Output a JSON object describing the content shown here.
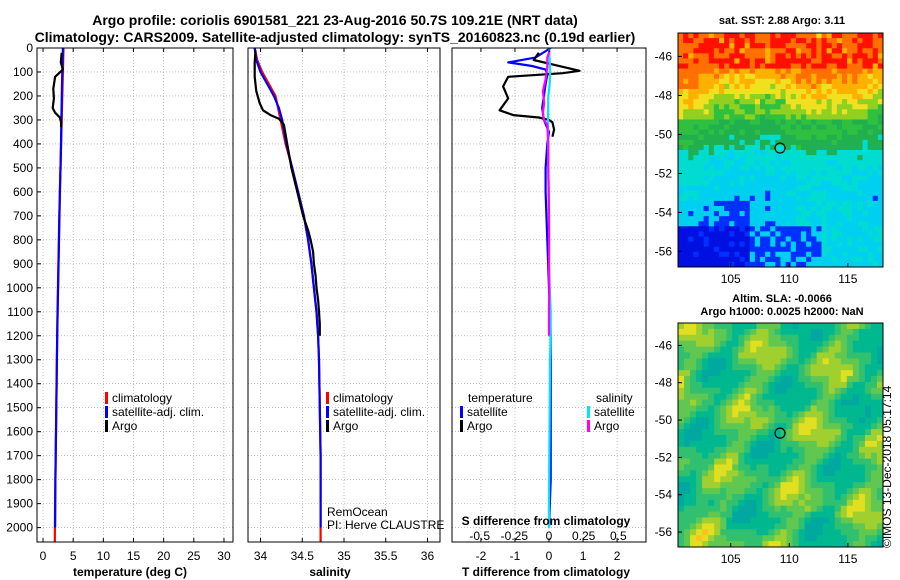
{
  "figure": {
    "title_line1": "Argo profile: coriolis 6901581_221 23-Aug-2016 50.7S 109.21E (NRT data)",
    "title_line2": "Climatology: CARS2009. Satellite-adjusted climatology: synTS_20160823.nc (0.19d earlier)",
    "credit": "RemOcean",
    "pi": "PI: Herve CLAUSTRE",
    "footer": "©IMOS 13-Dec-2018 05:17:14"
  },
  "colors": {
    "climatology": "#ff0000",
    "satellite": "#0000ff",
    "argo": "#000000",
    "satellite_salinity": "#00e5ff",
    "argo_salinity": "#ff00ff"
  },
  "chart_data": [
    {
      "id": "temperature",
      "type": "line",
      "xlabel": "temperature (deg C)",
      "ylabel": "",
      "xlim": [
        -1,
        31.5
      ],
      "ylim": [
        2060,
        0
      ],
      "xticks": [
        0,
        5,
        10,
        15,
        20,
        25,
        30
      ],
      "xticklabels": [
        "0",
        "5",
        "10",
        "15",
        "20",
        "25",
        "30"
      ],
      "yticks": [
        0,
        100,
        200,
        300,
        400,
        500,
        600,
        700,
        800,
        900,
        1000,
        1100,
        1200,
        1300,
        1400,
        1500,
        1600,
        1700,
        1800,
        1900,
        2000
      ],
      "legend": [
        "climatology",
        "satellite-adj. clim.",
        "Argo"
      ],
      "series": [
        {
          "name": "climatology",
          "color": "#ff0000",
          "points": [
            [
              3.4,
              0
            ],
            [
              3.3,
              100
            ],
            [
              3.2,
              200
            ],
            [
              3.1,
              300
            ],
            [
              3.0,
              400
            ],
            [
              2.9,
              500
            ],
            [
              2.7,
              700
            ],
            [
              2.55,
              900
            ],
            [
              2.4,
              1100
            ],
            [
              2.3,
              1300
            ],
            [
              2.2,
              1500
            ],
            [
              2.1,
              1700
            ],
            [
              2.0,
              1900
            ],
            [
              1.95,
              2060
            ]
          ]
        },
        {
          "name": "satellite-adj. clim.",
          "color": "#0000ff",
          "points": [
            [
              3.3,
              0
            ],
            [
              3.25,
              50
            ],
            [
              3.15,
              150
            ],
            [
              3.05,
              300
            ],
            [
              2.95,
              450
            ],
            [
              2.8,
              600
            ],
            [
              2.65,
              800
            ],
            [
              2.5,
              1000
            ],
            [
              2.35,
              1200
            ],
            [
              2.25,
              1400
            ],
            [
              2.15,
              1600
            ],
            [
              2.05,
              1800
            ],
            [
              2.0,
              2000
            ]
          ]
        },
        {
          "name": "Argo",
          "color": "#000000",
          "points": [
            [
              3.1,
              20
            ],
            [
              2.95,
              60
            ],
            [
              3.3,
              90
            ],
            [
              2.0,
              120
            ],
            [
              1.7,
              170
            ],
            [
              1.8,
              210
            ],
            [
              1.6,
              250
            ],
            [
              2.0,
              270
            ],
            [
              2.8,
              290
            ],
            [
              3.0,
              310
            ],
            [
              3.0,
              330
            ]
          ]
        }
      ]
    },
    {
      "id": "salinity",
      "type": "line",
      "xlabel": "salinity",
      "ylabel": "",
      "xlim": [
        33.85,
        36.15
      ],
      "ylim": [
        2060,
        0
      ],
      "xticks": [
        34,
        34.5,
        35,
        35.5,
        36
      ],
      "xticklabels": [
        "34",
        "34.5",
        "35",
        "35.5",
        "36"
      ],
      "legend": [
        "climatology",
        "satellite-adj. clim.",
        "Argo"
      ],
      "series": [
        {
          "name": "climatology",
          "color": "#ff0000",
          "points": [
            [
              33.93,
              0
            ],
            [
              33.96,
              50
            ],
            [
              34.02,
              100
            ],
            [
              34.1,
              150
            ],
            [
              34.18,
              200
            ],
            [
              34.24,
              300
            ],
            [
              34.3,
              400
            ],
            [
              34.38,
              500
            ],
            [
              34.45,
              600
            ],
            [
              34.52,
              700
            ],
            [
              34.57,
              800
            ],
            [
              34.61,
              900
            ],
            [
              34.64,
              1000
            ],
            [
              34.67,
              1100
            ],
            [
              34.69,
              1200
            ],
            [
              34.7,
              1300
            ],
            [
              34.71,
              1500
            ],
            [
              34.72,
              1700
            ],
            [
              34.72,
              2060
            ]
          ]
        },
        {
          "name": "satellite-adj. clim.",
          "color": "#0000ff",
          "points": [
            [
              33.93,
              0
            ],
            [
              33.95,
              50
            ],
            [
              34.0,
              100
            ],
            [
              34.08,
              150
            ],
            [
              34.16,
              200
            ],
            [
              34.22,
              250
            ],
            [
              34.26,
              300
            ],
            [
              34.31,
              400
            ],
            [
              34.38,
              500
            ],
            [
              34.45,
              600
            ],
            [
              34.52,
              700
            ],
            [
              34.57,
              800
            ],
            [
              34.61,
              900
            ],
            [
              34.64,
              1000
            ],
            [
              34.67,
              1100
            ],
            [
              34.69,
              1200
            ],
            [
              34.7,
              1300
            ],
            [
              34.71,
              1500
            ],
            [
              34.72,
              1700
            ],
            [
              34.72,
              2000
            ]
          ]
        },
        {
          "name": "Argo",
          "color": "#000000",
          "points": [
            [
              33.94,
              10
            ],
            [
              33.93,
              60
            ],
            [
              33.93,
              120
            ],
            [
              33.95,
              180
            ],
            [
              33.99,
              230
            ],
            [
              34.03,
              260
            ],
            [
              34.12,
              280
            ],
            [
              34.22,
              295
            ],
            [
              34.28,
              320
            ],
            [
              34.32,
              400
            ],
            [
              34.37,
              500
            ],
            [
              34.44,
              600
            ],
            [
              34.51,
              700
            ],
            [
              34.57,
              760
            ],
            [
              34.6,
              800
            ],
            [
              34.63,
              850
            ],
            [
              34.64,
              900
            ],
            [
              34.66,
              950
            ],
            [
              34.67,
              1000
            ],
            [
              34.69,
              1050
            ],
            [
              34.7,
              1100
            ],
            [
              34.71,
              1150
            ],
            [
              34.71,
              1200
            ]
          ]
        }
      ]
    },
    {
      "id": "difference",
      "type": "line",
      "xlabel": "T difference from climatology",
      "xlabel_top": "S difference from climatology",
      "ylabel": "",
      "xlim": [
        -2.85,
        2.85
      ],
      "ylim": [
        2060,
        0
      ],
      "xticks": [
        -2,
        -1,
        0,
        1,
        2
      ],
      "xticklabels": [
        "-2",
        "-1",
        "0",
        "1",
        "2"
      ],
      "sticks": [
        -0.5,
        -0.25,
        0,
        0.25,
        0.5
      ],
      "sticklabels": [
        "-0.5",
        "-0.25",
        "0",
        "0.25",
        "0.5"
      ],
      "legend_t_title": "temperature",
      "legend_s_title": "salinity",
      "legend_t": [
        "satellite",
        "Argo"
      ],
      "legend_s": [
        "satellite",
        "Argo"
      ],
      "series": [
        {
          "name": "T satellite",
          "color": "#0000ff",
          "points": [
            [
              0.05,
              0
            ],
            [
              -0.4,
              40
            ],
            [
              -1.2,
              60
            ],
            [
              -0.5,
              75
            ],
            [
              -0.1,
              90
            ],
            [
              -0.05,
              110
            ],
            [
              -0.1,
              150
            ],
            [
              -0.2,
              250
            ],
            [
              -0.15,
              300
            ],
            [
              0.0,
              350
            ],
            [
              -0.05,
              400
            ],
            [
              -0.1,
              500
            ],
            [
              -0.1,
              600
            ],
            [
              -0.05,
              800
            ],
            [
              0.0,
              1000
            ],
            [
              0.05,
              1200
            ],
            [
              0.05,
              1400
            ],
            [
              0.05,
              1600
            ],
            [
              0.05,
              1800
            ],
            [
              0.0,
              2000
            ]
          ]
        },
        {
          "name": "T Argo",
          "color": "#000000",
          "points": [
            [
              -0.3,
              20
            ],
            [
              -0.45,
              50
            ],
            [
              0.15,
              70
            ],
            [
              0.9,
              95
            ],
            [
              0.4,
              105
            ],
            [
              -1.2,
              120
            ],
            [
              -1.35,
              160
            ],
            [
              -1.2,
              210
            ],
            [
              -1.45,
              260
            ],
            [
              -1.05,
              280
            ],
            [
              -0.3,
              290
            ],
            [
              0.0,
              300
            ],
            [
              0.1,
              310
            ],
            [
              0.15,
              340
            ],
            [
              0.1,
              370
            ]
          ]
        },
        {
          "name": "S satellite",
          "color": "#00e5ff",
          "points": [
            [
              0.0,
              0
            ],
            [
              0.02,
              50
            ],
            [
              0.03,
              100
            ],
            [
              0.02,
              150
            ],
            [
              -0.02,
              200
            ],
            [
              -0.03,
              300
            ],
            [
              -0.03,
              400
            ],
            [
              -0.02,
              500
            ],
            [
              -0.01,
              600
            ],
            [
              0.0,
              700
            ],
            [
              0.01,
              800
            ],
            [
              0.0,
              900
            ],
            [
              0.02,
              1000
            ],
            [
              0.05,
              1100
            ],
            [
              0.05,
              1200
            ],
            [
              0.03,
              1300
            ],
            [
              0.02,
              1500
            ],
            [
              0.01,
              1700
            ],
            [
              0.0,
              1900
            ],
            [
              0.0,
              2000
            ]
          ]
        },
        {
          "name": "S Argo",
          "color": "#ff00ff",
          "points": [
            [
              0.02,
              10
            ],
            [
              -0.05,
              40
            ],
            [
              -0.05,
              80
            ],
            [
              -0.1,
              130
            ],
            [
              -0.18,
              180
            ],
            [
              -0.14,
              230
            ],
            [
              -0.18,
              270
            ],
            [
              -0.15,
              300
            ],
            [
              -0.05,
              320
            ],
            [
              -0.02,
              400
            ],
            [
              -0.02,
              500
            ],
            [
              -0.01,
              600
            ],
            [
              0.0,
              700
            ],
            [
              0.0,
              800
            ],
            [
              0.0,
              900
            ],
            [
              0.01,
              1000
            ],
            [
              0.0,
              1100
            ],
            [
              0.0,
              1200
            ]
          ]
        }
      ]
    },
    {
      "id": "sst_map",
      "type": "heatmap",
      "title": "sat. SST: 2.88 Argo: 3.11",
      "xlim": [
        100.5,
        118
      ],
      "ylim": [
        -56.8,
        -44.8
      ],
      "xticks": [
        105,
        110,
        115
      ],
      "xticklabels": [
        "105",
        "110",
        "115"
      ],
      "yticks": [
        -46,
        -48,
        -50,
        -52,
        -54,
        -56
      ],
      "yticklabels": [
        "-46",
        "-48",
        "-50",
        "-52",
        "-54",
        "-56"
      ],
      "marker": {
        "lon": 109.21,
        "lat": -50.7
      }
    },
    {
      "id": "sla_map",
      "type": "heatmap",
      "title": "Altim. SLA: -0.0066",
      "subtitle": "Argo h1000: 0.0025 h2000: NaN",
      "xlim": [
        100.5,
        118
      ],
      "ylim": [
        -56.8,
        -44.8
      ],
      "xticks": [
        105,
        110,
        115
      ],
      "xticklabels": [
        "105",
        "110",
        "115"
      ],
      "yticks": [
        -46,
        -48,
        -50,
        -52,
        -54,
        -56
      ],
      "yticklabels": [
        "-46",
        "-48",
        "-50",
        "-52",
        "-54",
        "-56"
      ],
      "marker": {
        "lon": 109.21,
        "lat": -50.7
      }
    }
  ]
}
